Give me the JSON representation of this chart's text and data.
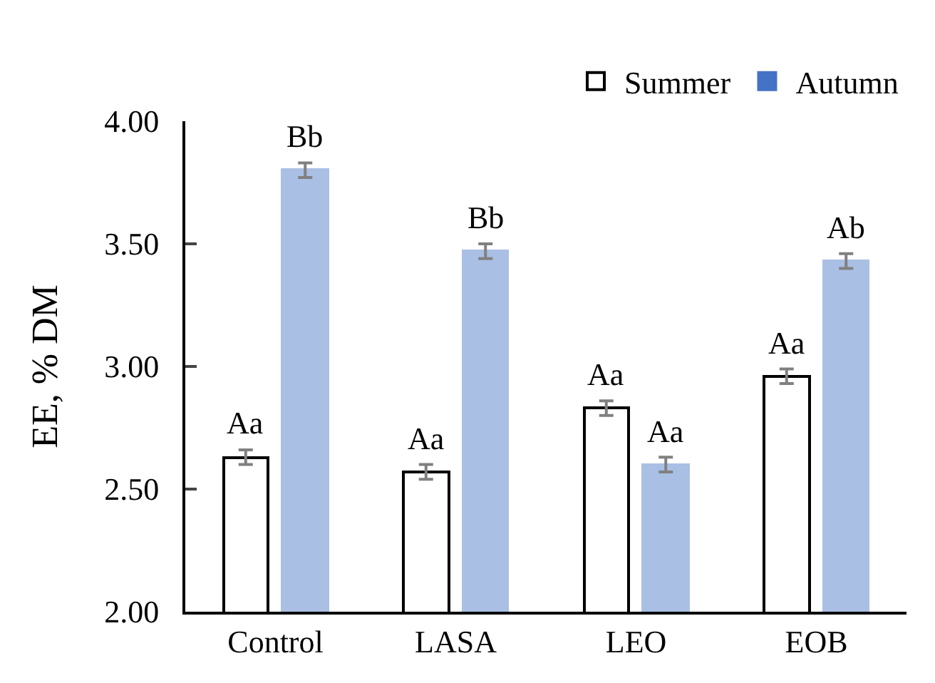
{
  "chart_data": {
    "type": "bar",
    "ylabel": "EE, % DM",
    "categories": [
      "Control",
      "LASA",
      "LEO",
      "EOB"
    ],
    "series": [
      {
        "name": "Summer",
        "color": "#ffffff",
        "values": [
          2.63,
          2.57,
          2.83,
          2.96
        ],
        "errors": [
          0.03,
          0.03,
          0.03,
          0.03
        ],
        "value_labels": [
          "Aa",
          "Aa",
          "Aa",
          "Aa"
        ]
      },
      {
        "name": "Autumn",
        "color": "#4472c4",
        "values": [
          3.8,
          3.47,
          2.6,
          3.43
        ],
        "errors": [
          0.03,
          0.03,
          0.03,
          0.03
        ],
        "value_labels": [
          "Bb",
          "Bb",
          "Aa",
          "Ab"
        ]
      }
    ],
    "ylim": [
      2.0,
      4.0
    ],
    "yticks": [
      {
        "value": 2.0,
        "label": "2.00"
      },
      {
        "value": 2.5,
        "label": "2.50"
      },
      {
        "value": 3.0,
        "label": "3.00"
      },
      {
        "value": 3.5,
        "label": "3.50"
      },
      {
        "value": 4.0,
        "label": "4.00"
      }
    ],
    "legend": "top right"
  }
}
